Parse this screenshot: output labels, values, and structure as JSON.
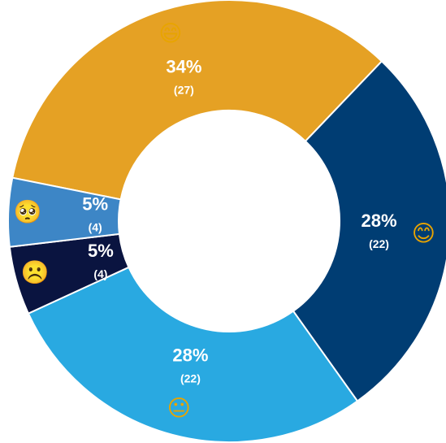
{
  "chart_data": {
    "type": "donut",
    "categories": [
      "😄",
      "😊",
      "😐",
      "☹️",
      "🥺"
    ],
    "values": [
      34,
      28,
      28,
      5,
      5
    ],
    "value_labels": [
      "34%",
      "28%",
      "28%",
      "5%",
      "5%"
    ],
    "counts": [
      27,
      22,
      22,
      4,
      4
    ],
    "count_labels": [
      "(27)",
      "(22)",
      "(22)",
      "(4)",
      "(4)"
    ],
    "colors": [
      "#E5A124",
      "#003D73",
      "#29A9E1",
      "#0A1440",
      "#3D86C6"
    ]
  }
}
